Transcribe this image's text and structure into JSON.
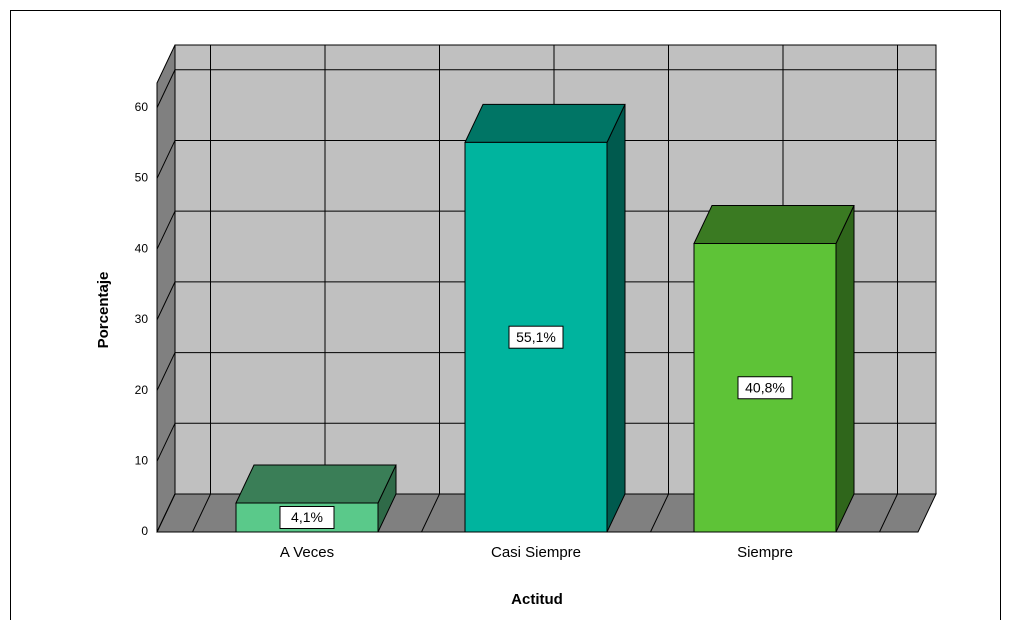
{
  "chart_data": {
    "type": "bar3d",
    "x_label": "Actitud",
    "y_label": "Porcentaje",
    "categories": [
      "A Veces",
      "Casi Siempre",
      "Siempre"
    ],
    "values": [
      4.1,
      55.1,
      40.8
    ],
    "value_labels": [
      "4,1%",
      "55,1%",
      "40,8%"
    ],
    "colors": [
      "#5ac98a",
      "#00b49e",
      "#5ec337"
    ],
    "top_colors": [
      "#3a7e57",
      "#007565",
      "#3a7a22"
    ],
    "side_colors": [
      "#2f6a48",
      "#005a4e",
      "#2f661b"
    ],
    "ylim": [
      0,
      63.5
    ],
    "yticks": [
      0,
      10,
      20,
      30,
      40,
      50,
      60
    ],
    "grid": true
  }
}
